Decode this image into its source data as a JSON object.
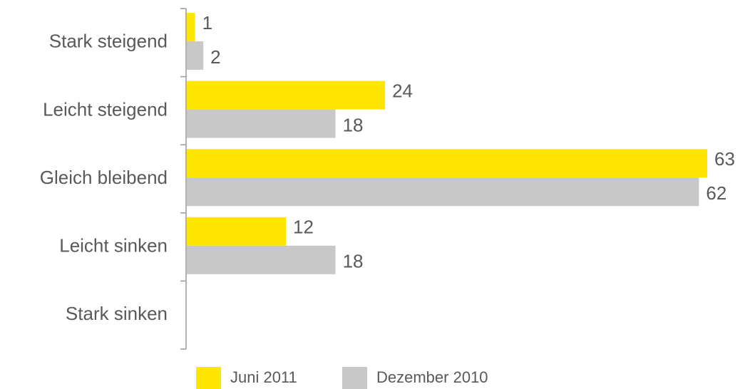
{
  "chart_data": {
    "type": "hbar",
    "categories": [
      "Stark steigend",
      "Leicht steigend",
      "Gleich bleibend",
      "Leicht sinken",
      "Stark sinken"
    ],
    "series": [
      {
        "name": "Juni 2011",
        "color": "#FFE600",
        "values": [
          1,
          24,
          63,
          12,
          null
        ]
      },
      {
        "name": "Dezember 2010",
        "color": "#C8C8C8",
        "values": [
          2,
          18,
          62,
          18,
          null
        ]
      }
    ],
    "legend": "bottom"
  }
}
